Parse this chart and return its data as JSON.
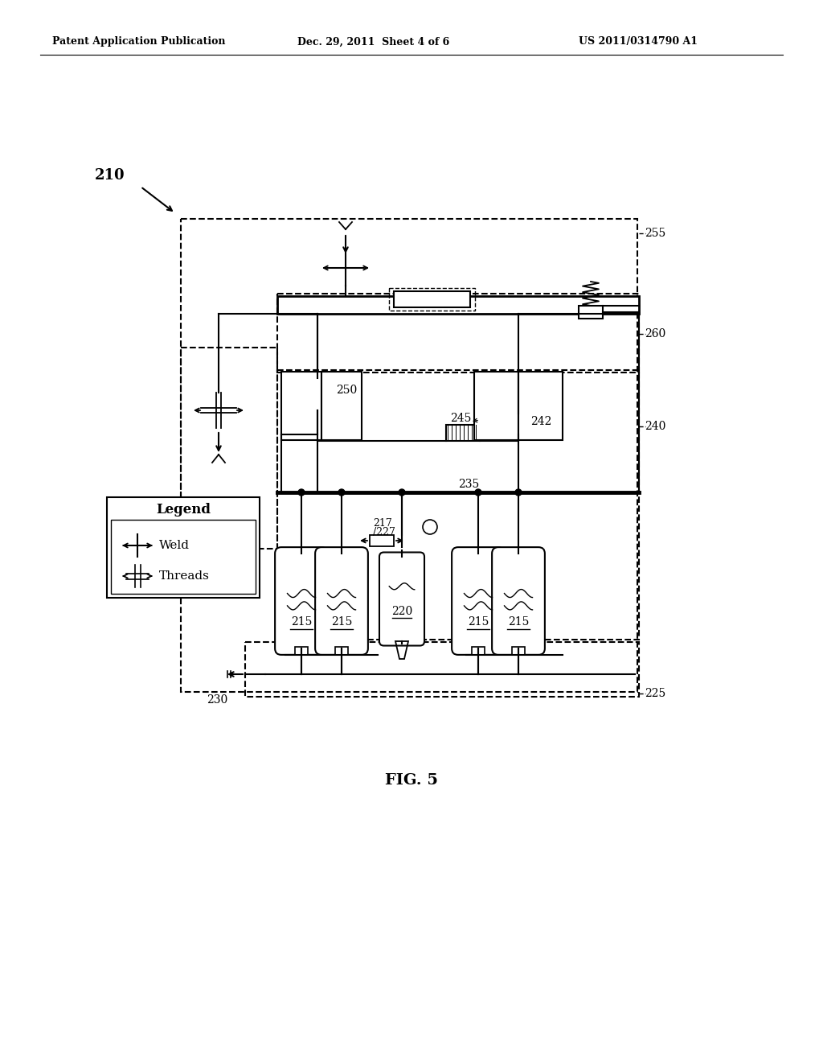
{
  "bg_color": "#ffffff",
  "header_left": "Patent Application Publication",
  "header_mid": "Dec. 29, 2011  Sheet 4 of 6",
  "header_right": "US 2011/0314790 A1",
  "fig_label": "FIG. 5",
  "label_210": "210",
  "label_255": "255",
  "label_260": "260",
  "label_250": "250",
  "label_245": "245",
  "label_242": "242",
  "label_240": "240",
  "label_235": "235",
  "label_217": "217",
  "label_227": "227",
  "label_220": "220",
  "label_215": "215",
  "label_230": "230",
  "label_225": "225",
  "legend_title": "Legend",
  "legend_weld": "Weld",
  "legend_threads": "Threads",
  "lc": "#000000"
}
